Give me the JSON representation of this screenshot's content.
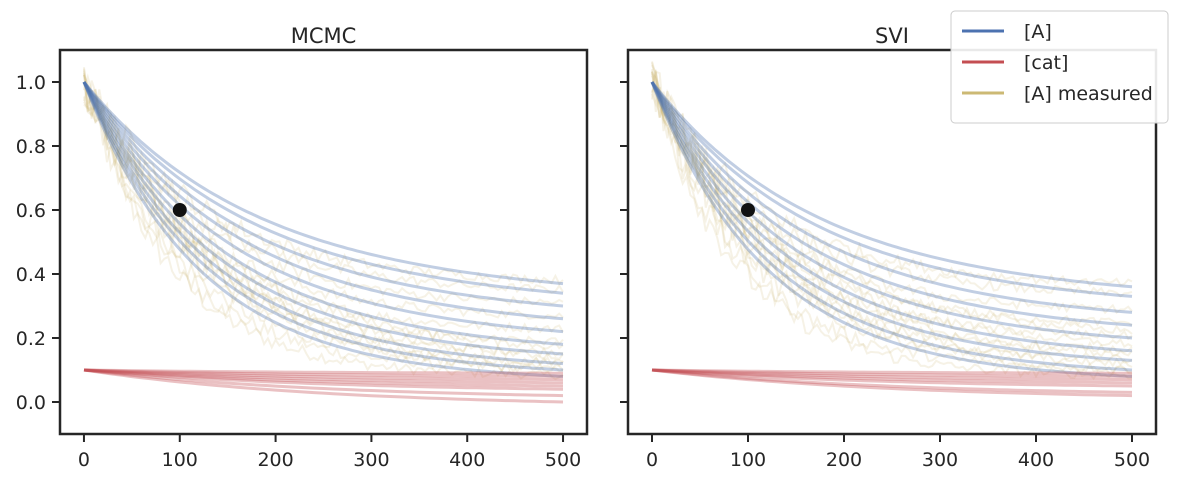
{
  "chart_data": [
    {
      "type": "line",
      "title": "MCMC",
      "xlabel": "",
      "ylabel": "",
      "xlim": [
        -25,
        525
      ],
      "ylim": [
        -0.1,
        1.1
      ],
      "x_ticks": [
        0,
        100,
        200,
        300,
        400,
        500
      ],
      "y_ticks": [
        0.0,
        0.2,
        0.4,
        0.6,
        0.8,
        1.0
      ],
      "x_tick_labels": [
        "0",
        "100",
        "200",
        "300",
        "400",
        "500"
      ],
      "y_tick_labels": [
        "0.0",
        "0.2",
        "0.4",
        "0.6",
        "0.8",
        "1.0"
      ],
      "grid": false,
      "series": [
        {
          "name": "[A]",
          "color": "#4c72b0",
          "description": "ensemble of posterior draws",
          "x_end": 500,
          "start_value": 1.0,
          "end_values": [
            0.08,
            0.1,
            0.12,
            0.15,
            0.18,
            0.22,
            0.26,
            0.3,
            0.34,
            0.37
          ]
        },
        {
          "name": "[cat]",
          "color": "#c44e52",
          "start_value": 0.1,
          "x_end": 500,
          "end_values": [
            0.0,
            0.02,
            0.04,
            0.05,
            0.06,
            0.07,
            0.08,
            0.09
          ]
        },
        {
          "name": "[A] measured",
          "color": "#ccb974",
          "start_value": 1.0,
          "x_end": 500,
          "noise": "high near start"
        }
      ],
      "markers": [
        {
          "x": 100,
          "y": 0.6,
          "color": "#111111"
        }
      ]
    },
    {
      "type": "line",
      "title": "SVI",
      "xlabel": "",
      "ylabel": "",
      "xlim": [
        -25,
        525
      ],
      "ylim": [
        -0.1,
        1.1
      ],
      "x_ticks": [
        0,
        100,
        200,
        300,
        400,
        500
      ],
      "y_ticks": [
        0.0,
        0.2,
        0.4,
        0.6,
        0.8,
        1.0
      ],
      "x_tick_labels": [
        "0",
        "100",
        "200",
        "300",
        "400",
        "500"
      ],
      "y_tick_labels": [],
      "grid": false,
      "shared_y": true,
      "series": [
        {
          "name": "[A]",
          "color": "#4c72b0",
          "x_end": 500,
          "start_value": 1.0,
          "end_values": [
            0.08,
            0.1,
            0.13,
            0.16,
            0.2,
            0.24,
            0.28,
            0.33,
            0.36
          ]
        },
        {
          "name": "[cat]",
          "color": "#c44e52",
          "start_value": 0.1,
          "x_end": 500,
          "end_values": [
            0.02,
            0.03,
            0.05,
            0.06,
            0.07,
            0.08,
            0.09
          ]
        },
        {
          "name": "[A] measured",
          "color": "#ccb974",
          "start_value": 1.0,
          "x_end": 500,
          "noise": "high near start"
        }
      ],
      "markers": [
        {
          "x": 100,
          "y": 0.6,
          "color": "#111111"
        }
      ]
    }
  ],
  "legend": {
    "placement": "top-right",
    "entries": [
      {
        "label": "[A]",
        "color": "#4c72b0"
      },
      {
        "label": "[cat]",
        "color": "#c44e52"
      },
      {
        "label": "[A] measured",
        "color": "#ccb974"
      }
    ]
  }
}
